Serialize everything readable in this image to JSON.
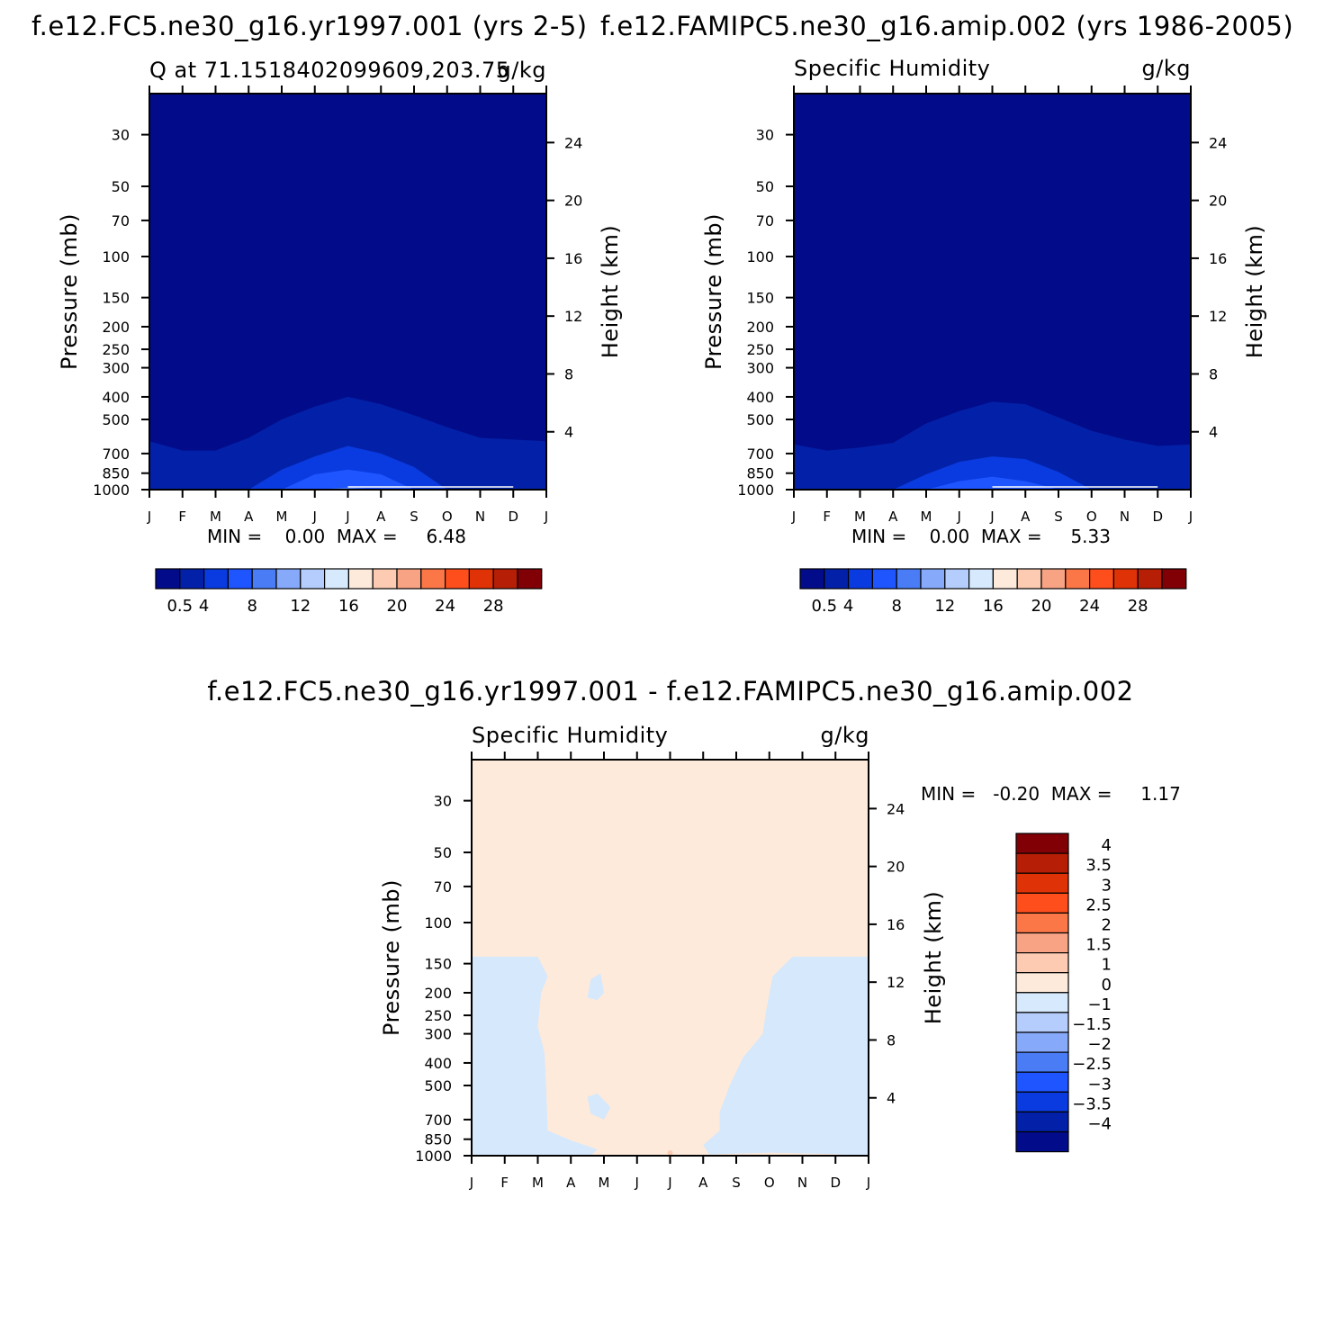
{
  "chart_data": [
    {
      "type": "heatmap",
      "panel": "top-left",
      "suptitle": "f.e12.FC5.ne30_g16.yr1997.001 (yrs 2-5)",
      "title_left": "Q at 71.1518402099609,203.75",
      "title_right": "g/kg",
      "xlabel": "",
      "ylabel": "Pressure (mb)",
      "ylabel_right": "Height (km)",
      "x_ticks": [
        "J",
        "F",
        "M",
        "A",
        "M",
        "J",
        "J",
        "A",
        "S",
        "O",
        "N",
        "D",
        "J"
      ],
      "y_ticks": [
        30,
        50,
        70,
        100,
        150,
        200,
        250,
        300,
        400,
        500,
        700,
        850,
        1000
      ],
      "y_ticks_right": [
        24,
        20,
        16,
        12,
        8,
        4
      ],
      "ylim": [
        1000,
        20
      ],
      "log_y": true,
      "minmax": "MIN =    0.00  MAX =     6.48",
      "min": 0.0,
      "max": 6.48,
      "colorbar_levels": [
        0.5,
        2,
        4,
        6,
        8,
        10,
        12,
        14,
        16,
        18,
        20,
        22,
        24,
        26,
        28
      ],
      "colorbar_labels": [
        "0.5",
        "4",
        "8",
        "12",
        "16",
        "20",
        "24",
        "28"
      ],
      "colorbar_orientation": "horizontal",
      "regions": [
        {
          "level": "<0.5",
          "color": "#020c8a",
          "boundary_p": null
        },
        {
          "level": "0.5-2",
          "color": "#0321a8",
          "boundary_p": [
            620,
            680,
            680,
            600,
            500,
            440,
            400,
            430,
            480,
            540,
            600,
            610,
            620
          ]
        },
        {
          "level": "2-4",
          "color": "#0a3be0",
          "boundary_p": [
            1000,
            1000,
            1000,
            1000,
            820,
            720,
            650,
            700,
            800,
            1000,
            1000,
            1000,
            1000
          ]
        },
        {
          "level": "4-6",
          "color": "#1e55ff",
          "boundary_p": [
            1000,
            1000,
            1000,
            1000,
            1000,
            860,
            820,
            860,
            1000,
            1000,
            1000,
            1000,
            1000
          ]
        },
        {
          "level": "6-8",
          "color": "#4a7cf5",
          "boundary_p": [
            1000,
            1000,
            1000,
            1000,
            1000,
            1000,
            980,
            1000,
            1000,
            1000,
            1000,
            1000,
            1000
          ]
        }
      ]
    },
    {
      "type": "heatmap",
      "panel": "top-right",
      "suptitle": "f.e12.FAMIPC5.ne30_g16.amip.002 (yrs 1986-2005)",
      "title_left": "Specific Humidity",
      "title_right": "g/kg",
      "xlabel": "",
      "ylabel": "Pressure (mb)",
      "ylabel_right": "Height (km)",
      "x_ticks": [
        "J",
        "F",
        "M",
        "A",
        "M",
        "J",
        "J",
        "A",
        "S",
        "O",
        "N",
        "D",
        "J"
      ],
      "y_ticks": [
        30,
        50,
        70,
        100,
        150,
        200,
        250,
        300,
        400,
        500,
        700,
        850,
        1000
      ],
      "y_ticks_right": [
        24,
        20,
        16,
        12,
        8,
        4
      ],
      "ylim": [
        1000,
        20
      ],
      "log_y": true,
      "minmax": "MIN =    0.00  MAX =     5.33",
      "min": 0.0,
      "max": 5.33,
      "colorbar_levels": [
        0.5,
        2,
        4,
        6,
        8,
        10,
        12,
        14,
        16,
        18,
        20,
        22,
        24,
        26,
        28
      ],
      "colorbar_labels": [
        "0.5",
        "4",
        "8",
        "12",
        "16",
        "20",
        "24",
        "28"
      ],
      "colorbar_orientation": "horizontal",
      "regions": [
        {
          "level": "<0.5",
          "color": "#020c8a",
          "boundary_p": null
        },
        {
          "level": "0.5-2",
          "color": "#0321a8",
          "boundary_p": [
            640,
            680,
            660,
            630,
            520,
            460,
            420,
            430,
            490,
            560,
            610,
            650,
            640
          ]
        },
        {
          "level": "2-4",
          "color": "#0a3be0",
          "boundary_p": [
            1000,
            1000,
            1000,
            1000,
            860,
            760,
            720,
            740,
            840,
            1000,
            1000,
            1000,
            1000
          ]
        },
        {
          "level": "4-6",
          "color": "#1e55ff",
          "boundary_p": [
            1000,
            1000,
            1000,
            1000,
            1000,
            920,
            880,
            920,
            1000,
            1000,
            1000,
            1000,
            1000
          ]
        }
      ]
    },
    {
      "type": "heatmap",
      "panel": "bottom",
      "suptitle": "f.e12.FC5.ne30_g16.yr1997.001 - f.e12.FAMIPC5.ne30_g16.amip.002",
      "title_left": "Specific Humidity",
      "title_right": "g/kg",
      "xlabel": "",
      "ylabel": "Pressure (mb)",
      "ylabel_right": "Height (km)",
      "x_ticks": [
        "J",
        "F",
        "M",
        "A",
        "M",
        "J",
        "J",
        "A",
        "S",
        "O",
        "N",
        "D",
        "J"
      ],
      "y_ticks": [
        30,
        50,
        70,
        100,
        150,
        200,
        250,
        300,
        400,
        500,
        700,
        850,
        1000
      ],
      "y_ticks_right": [
        24,
        20,
        16,
        12,
        8,
        4
      ],
      "ylim": [
        1000,
        20
      ],
      "log_y": true,
      "minmax": "MIN =   -0.20  MAX =     1.17",
      "min": -0.2,
      "max": 1.17,
      "colorbar_levels": [
        -4,
        -3.5,
        -3,
        -2.5,
        -2,
        -1.5,
        -1,
        0,
        1,
        1.5,
        2,
        2.5,
        3,
        3.5,
        4
      ],
      "colorbar_labels": [
        "4",
        "3.5",
        "3",
        "2.5",
        "2",
        "1.5",
        "1",
        "0",
        "-1",
        "-1.5",
        "-2",
        "-2.5",
        "-3",
        "-3.5",
        "-4"
      ],
      "colorbar_orientation": "vertical",
      "colors": {
        "positive_0_1": "#feeadb",
        "negative_0_-1": "#d5e8fc",
        "positive_1_1.5": "#fccbb2"
      }
    }
  ]
}
